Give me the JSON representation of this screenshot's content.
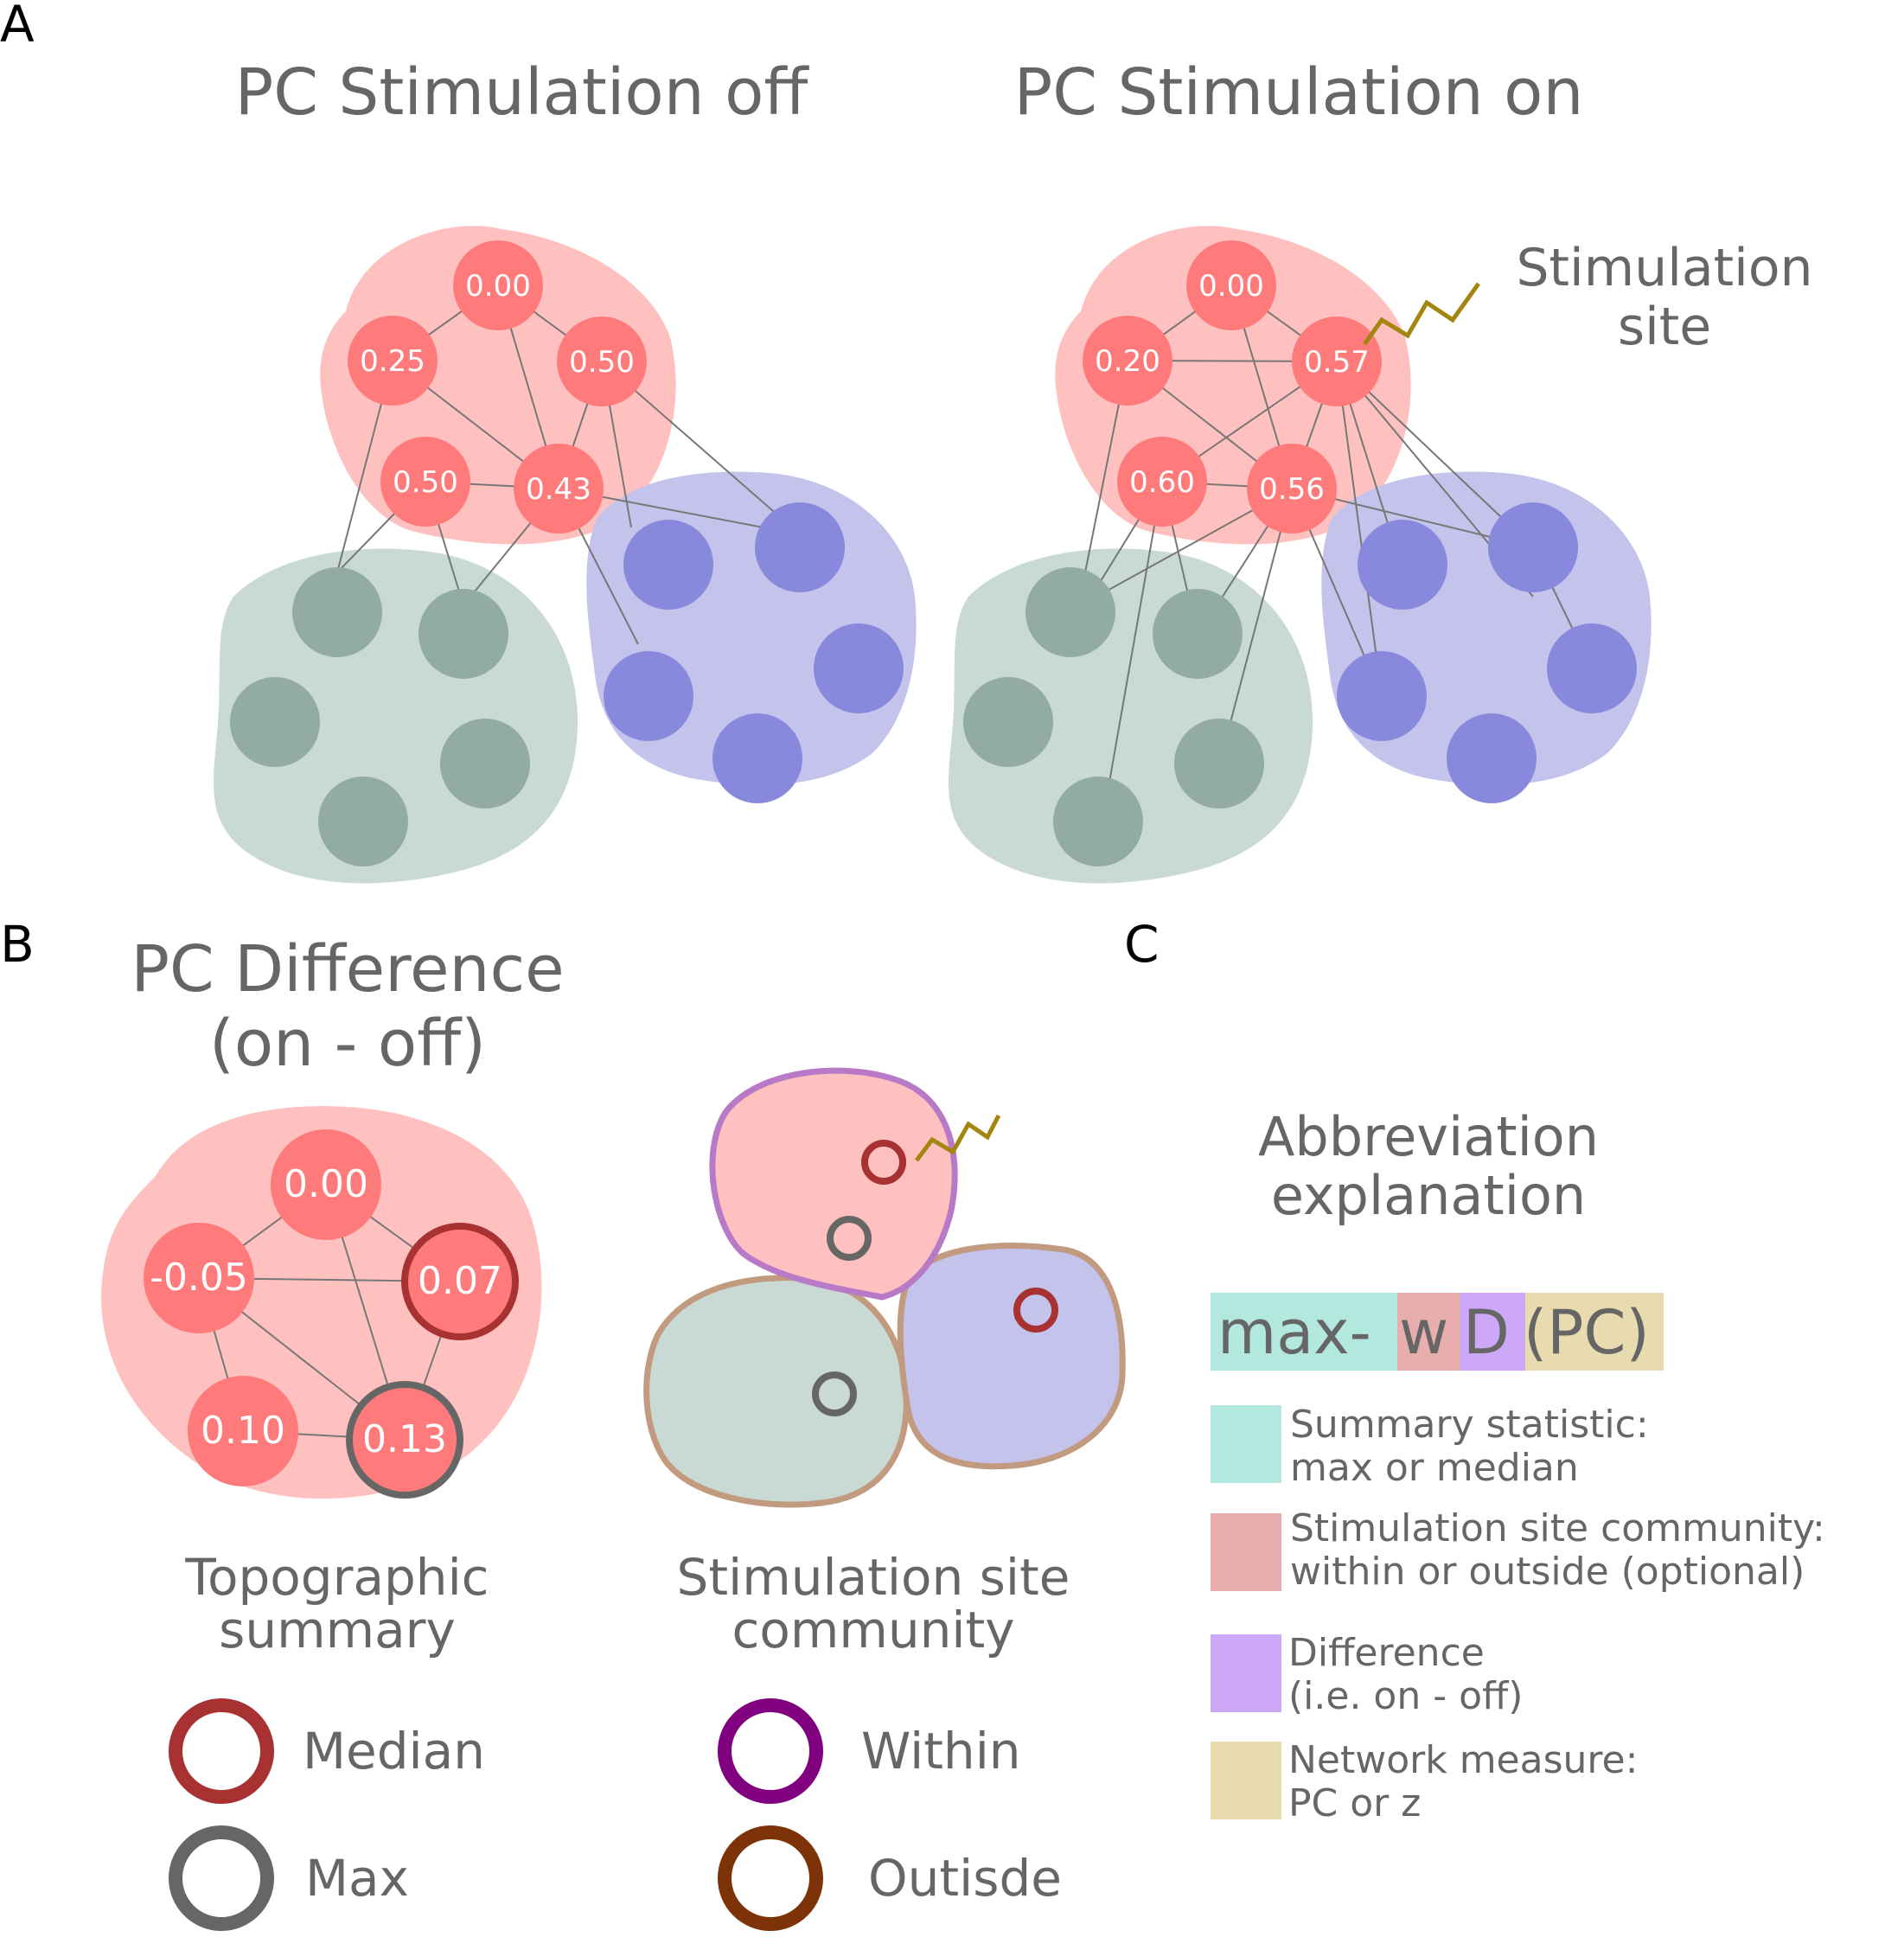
{
  "colors": {
    "text": "#666666",
    "panel_letter": "#000000",
    "community_red_fill": "#ffc0c0",
    "node_red": "#ff7b7b",
    "community_green_fill": "#c9d9d4",
    "node_green": "#92aba3",
    "community_purple_fill": "#c3c3ec",
    "node_purple": "#8888dd",
    "edge": "#777777",
    "stim_zigzag": "#a3860f",
    "median_ring": "#a83232",
    "max_ring": "#666666",
    "within_outline": "#b879c6",
    "outside_outline": "#c29a80",
    "within_legend": "#800080",
    "outside_legend": "#7d3207",
    "abbr_summary": "#b2e8dd",
    "abbr_site": "#e8aeae",
    "abbr_difference": "#cda8f8",
    "abbr_measure": "#e8dbb0"
  },
  "panel_a": {
    "letter": "A",
    "off": {
      "title": "PC Stimulation off",
      "node_values": [
        "0.00",
        "0.25",
        "0.50",
        "0.50",
        "0.43"
      ]
    },
    "on": {
      "title": "PC Stimulation on",
      "node_values": [
        "0.00",
        "0.20",
        "0.57",
        "0.60",
        "0.56"
      ],
      "stim_label_line1": "Stimulation",
      "stim_label_line2": "site"
    }
  },
  "panel_b": {
    "letter": "B",
    "title_line1": "PC Difference",
    "title_line2": "(on - off)",
    "node_values": [
      "0.00",
      "-0.05",
      "0.07",
      "0.10",
      "0.13"
    ],
    "topographic_label_line1": "Topographic",
    "topographic_label_line2": "summary",
    "site_label_line1": "Stimulation site",
    "site_label_line2": "community",
    "legend": {
      "median": "Median",
      "max": "Max",
      "within": "Within",
      "outside": "Outisde"
    }
  },
  "panel_c": {
    "letter": "C",
    "title_line1": "Abbreviation",
    "title_line2": "explanation",
    "formula_parts": [
      "max-",
      "w",
      "D",
      "(PC)"
    ],
    "items": [
      {
        "line1": "Summary statistic:",
        "line2": "max or median",
        "color_key": "abbr_summary"
      },
      {
        "line1": "Stimulation site community:",
        "line2": "within or outside (optional)",
        "color_key": "abbr_site"
      },
      {
        "line1": "Difference",
        "line2": "(i.e. on - off)",
        "color_key": "abbr_difference"
      },
      {
        "line1": "Network measure:",
        "line2": "PC or z",
        "color_key": "abbr_measure"
      }
    ]
  }
}
